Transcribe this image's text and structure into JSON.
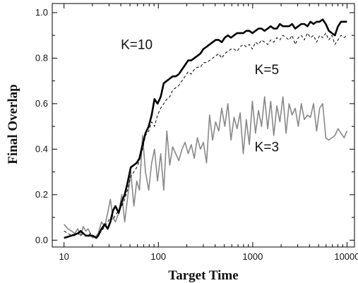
{
  "chart_data": {
    "type": "line",
    "title": "",
    "xlabel": "Target Time",
    "ylabel": "Final Overlap",
    "x_scale": "log",
    "xlim": [
      7.5,
      12000
    ],
    "ylim": [
      -0.03,
      1.04
    ],
    "x_ticks": [
      10,
      100,
      1000,
      10000
    ],
    "x_tick_labels": [
      "10",
      "100",
      "1000",
      "10000"
    ],
    "y_ticks": [
      0.0,
      0.2,
      0.4,
      0.6,
      0.8,
      1.0
    ],
    "y_tick_labels": [
      "0.0",
      "0.2",
      "0.4",
      "0.6",
      "0.8",
      "1.0"
    ],
    "grid": false,
    "legend": "none",
    "x": [
      10,
      11,
      12,
      13,
      14,
      15,
      16,
      17,
      18,
      19,
      20,
      22,
      23,
      25,
      27,
      29,
      31,
      33,
      35,
      38,
      41,
      44,
      47,
      51,
      55,
      59,
      63,
      68,
      73,
      79,
      85,
      91,
      98,
      106,
      114,
      123,
      132,
      142,
      153,
      165,
      178,
      192,
      207,
      223,
      240,
      259,
      279,
      300,
      324,
      349,
      376,
      405,
      437,
      470,
      507,
      546,
      589,
      634,
      684,
      737,
      794,
      855,
      921,
      993,
      1070,
      1153,
      1242,
      1338,
      1442,
      1554,
      1674,
      1804,
      1944,
      2094,
      2257,
      2432,
      2620,
      2823,
      3042,
      3278,
      3532,
      3805,
      4100,
      4418,
      4760,
      5129,
      5527,
      5955,
      6417,
      6914,
      7450,
      8027,
      8649,
      9320,
      10000
    ],
    "series": [
      {
        "name": "K=10",
        "color": "#000000",
        "style": "solid",
        "values": [
          0.01,
          0.015,
          0.02,
          0.025,
          0.03,
          0.04,
          0.03,
          0.02,
          0.02,
          0.02,
          0.02,
          0.01,
          0.02,
          0.05,
          0.07,
          0.05,
          0.08,
          0.13,
          0.15,
          0.12,
          0.17,
          0.2,
          0.25,
          0.32,
          0.33,
          0.34,
          0.36,
          0.42,
          0.47,
          0.5,
          0.55,
          0.62,
          0.6,
          0.63,
          0.69,
          0.7,
          0.71,
          0.72,
          0.72,
          0.73,
          0.75,
          0.77,
          0.79,
          0.79,
          0.8,
          0.81,
          0.82,
          0.84,
          0.85,
          0.86,
          0.87,
          0.88,
          0.88,
          0.87,
          0.89,
          0.9,
          0.89,
          0.9,
          0.91,
          0.91,
          0.91,
          0.92,
          0.92,
          0.91,
          0.92,
          0.93,
          0.93,
          0.92,
          0.93,
          0.94,
          0.93,
          0.93,
          0.95,
          0.94,
          0.94,
          0.94,
          0.95,
          0.93,
          0.94,
          0.95,
          0.95,
          0.94,
          0.96,
          0.95,
          0.96,
          0.96,
          0.97,
          0.95,
          0.92,
          0.91,
          0.9,
          0.94,
          0.96,
          0.96,
          0.96
        ]
      },
      {
        "name": "K=5",
        "color": "#000000",
        "style": "dashed",
        "values": [
          0.04,
          0.03,
          0.02,
          0.02,
          0.03,
          0.02,
          0.03,
          0.02,
          0.02,
          0.03,
          0.02,
          0.01,
          0.02,
          0.04,
          0.06,
          0.08,
          0.1,
          0.09,
          0.11,
          0.13,
          0.15,
          0.18,
          0.22,
          0.28,
          0.3,
          0.32,
          0.35,
          0.4,
          0.46,
          0.48,
          0.52,
          0.5,
          0.55,
          0.58,
          0.6,
          0.62,
          0.63,
          0.66,
          0.67,
          0.68,
          0.7,
          0.72,
          0.74,
          0.73,
          0.75,
          0.76,
          0.76,
          0.78,
          0.78,
          0.79,
          0.8,
          0.81,
          0.82,
          0.8,
          0.82,
          0.83,
          0.84,
          0.84,
          0.83,
          0.85,
          0.86,
          0.85,
          0.86,
          0.84,
          0.87,
          0.86,
          0.88,
          0.87,
          0.86,
          0.88,
          0.87,
          0.89,
          0.88,
          0.9,
          0.89,
          0.88,
          0.9,
          0.86,
          0.89,
          0.9,
          0.88,
          0.91,
          0.89,
          0.9,
          0.87,
          0.9,
          0.89,
          0.91,
          0.88,
          0.9,
          0.86,
          0.88,
          0.9,
          0.89,
          0.9
        ]
      },
      {
        "name": "K=3",
        "color": "#888888",
        "style": "solid",
        "values": [
          0.07,
          0.05,
          0.04,
          0.03,
          0.05,
          0.02,
          0.06,
          0.04,
          0.05,
          0.03,
          0.01,
          0.02,
          0.03,
          0.08,
          0.06,
          0.12,
          0.18,
          0.1,
          0.08,
          0.12,
          0.2,
          0.08,
          0.18,
          0.3,
          0.15,
          0.26,
          0.22,
          0.46,
          0.3,
          0.22,
          0.34,
          0.4,
          0.26,
          0.38,
          0.22,
          0.48,
          0.33,
          0.41,
          0.38,
          0.35,
          0.4,
          0.43,
          0.38,
          0.42,
          0.36,
          0.45,
          0.4,
          0.43,
          0.34,
          0.55,
          0.44,
          0.52,
          0.48,
          0.58,
          0.5,
          0.6,
          0.44,
          0.54,
          0.49,
          0.56,
          0.38,
          0.53,
          0.42,
          0.61,
          0.47,
          0.57,
          0.5,
          0.63,
          0.49,
          0.61,
          0.46,
          0.59,
          0.52,
          0.63,
          0.47,
          0.6,
          0.55,
          0.58,
          0.5,
          0.6,
          0.53,
          0.55,
          0.54,
          0.6,
          0.48,
          0.58,
          0.6,
          0.45,
          0.44,
          0.45,
          0.46,
          0.49,
          0.47,
          0.45,
          0.48
        ]
      }
    ],
    "annotations": [
      {
        "text": "K=10",
        "x": 40,
        "y": 0.84
      },
      {
        "text": "K=5",
        "x": 1050,
        "y": 0.73
      },
      {
        "text": "K=3",
        "x": 1050,
        "y": 0.39
      }
    ]
  }
}
